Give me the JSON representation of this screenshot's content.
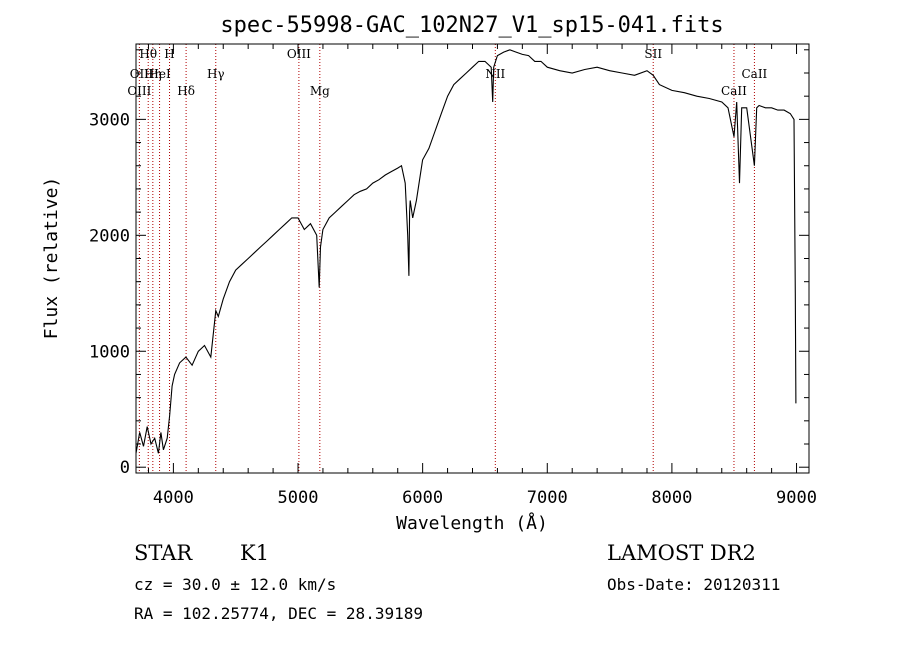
{
  "chart_data": {
    "type": "line",
    "title": "spec-55998-GAC_102N27_V1_sp15-041.fits",
    "xlabel": "Wavelength (Å)",
    "ylabel": "Flux (relative)",
    "xlim": [
      3700,
      9100
    ],
    "ylim": [
      -50,
      3650
    ],
    "xticks": [
      4000,
      5000,
      6000,
      7000,
      8000,
      9000
    ],
    "yticks": [
      0,
      1000,
      2000,
      3000
    ],
    "grid": false,
    "series": [
      {
        "color": "#000000",
        "x": [
          3700,
          3730,
          3760,
          3790,
          3820,
          3850,
          3880,
          3900,
          3920,
          3950,
          3970,
          3990,
          4010,
          4050,
          4100,
          4150,
          4200,
          4250,
          4300,
          4340,
          4360,
          4400,
          4450,
          4500,
          4550,
          4600,
          4650,
          4700,
          4750,
          4800,
          4850,
          4900,
          4950,
          5000,
          5050,
          5100,
          5150,
          5170,
          5180,
          5200,
          5250,
          5300,
          5350,
          5400,
          5450,
          5500,
          5550,
          5600,
          5650,
          5700,
          5750,
          5800,
          5830,
          5860,
          5880,
          5890,
          5895,
          5900,
          5920,
          5950,
          6000,
          6050,
          6100,
          6150,
          6200,
          6250,
          6300,
          6350,
          6400,
          6450,
          6500,
          6550,
          6562,
          6570,
          6600,
          6650,
          6700,
          6750,
          6800,
          6850,
          6900,
          6950,
          7000,
          7100,
          7200,
          7300,
          7400,
          7500,
          7600,
          7700,
          7800,
          7850,
          7900,
          8000,
          8100,
          8200,
          8300,
          8400,
          8450,
          8498,
          8520,
          8542,
          8560,
          8600,
          8662,
          8680,
          8700,
          8750,
          8800,
          8850,
          8900,
          8950,
          8980,
          8990,
          8995
        ],
        "values": [
          120,
          300,
          180,
          350,
          200,
          250,
          120,
          300,
          150,
          250,
          450,
          700,
          800,
          900,
          950,
          880,
          1000,
          1050,
          950,
          1350,
          1300,
          1450,
          1600,
          1700,
          1750,
          1800,
          1850,
          1900,
          1950,
          2000,
          2050,
          2100,
          2150,
          2150,
          2050,
          2100,
          2000,
          1550,
          1900,
          2050,
          2150,
          2200,
          2250,
          2300,
          2350,
          2380,
          2400,
          2450,
          2480,
          2520,
          2550,
          2580,
          2600,
          2450,
          2000,
          1650,
          2200,
          2300,
          2150,
          2300,
          2650,
          2750,
          2900,
          3050,
          3200,
          3300,
          3350,
          3400,
          3450,
          3500,
          3500,
          3450,
          3150,
          3450,
          3550,
          3580,
          3600,
          3580,
          3560,
          3550,
          3500,
          3500,
          3450,
          3420,
          3400,
          3430,
          3450,
          3420,
          3400,
          3380,
          3420,
          3380,
          3300,
          3250,
          3230,
          3200,
          3180,
          3150,
          3100,
          2850,
          3150,
          2450,
          3100,
          3100,
          2600,
          3100,
          3120,
          3100,
          3100,
          3080,
          3080,
          3050,
          3000,
          1500,
          550
        ]
      }
    ],
    "line_markers": [
      {
        "name": "Hθ",
        "x": 3798
      },
      {
        "name": "OII",
        "x": 3727
      },
      {
        "name": "OIII",
        "x": 3727
      },
      {
        "name": "H",
        "x": 3969
      },
      {
        "name": "HeI",
        "x": 3889
      },
      {
        "name": "Hη",
        "x": 3835
      },
      {
        "name": "Hδ",
        "x": 4102
      },
      {
        "name": "Hγ",
        "x": 4340
      },
      {
        "name": "OIII",
        "x": 5007
      },
      {
        "name": "Mg",
        "x": 5175
      },
      {
        "name": "NII",
        "x": 6583
      },
      {
        "name": "SII",
        "x": 7850
      },
      {
        "name": "CaII",
        "x": 8498
      },
      {
        "name": "CaII",
        "x": 8662
      }
    ]
  },
  "info": {
    "object_class": "STAR",
    "subclass": "K1",
    "survey": "LAMOST DR2",
    "cz": "cz = 30.0 ± 12.0 km/s",
    "obs_date": "Obs-Date: 20120311",
    "coords": "RA = 102.25774, DEC =  28.39189"
  }
}
